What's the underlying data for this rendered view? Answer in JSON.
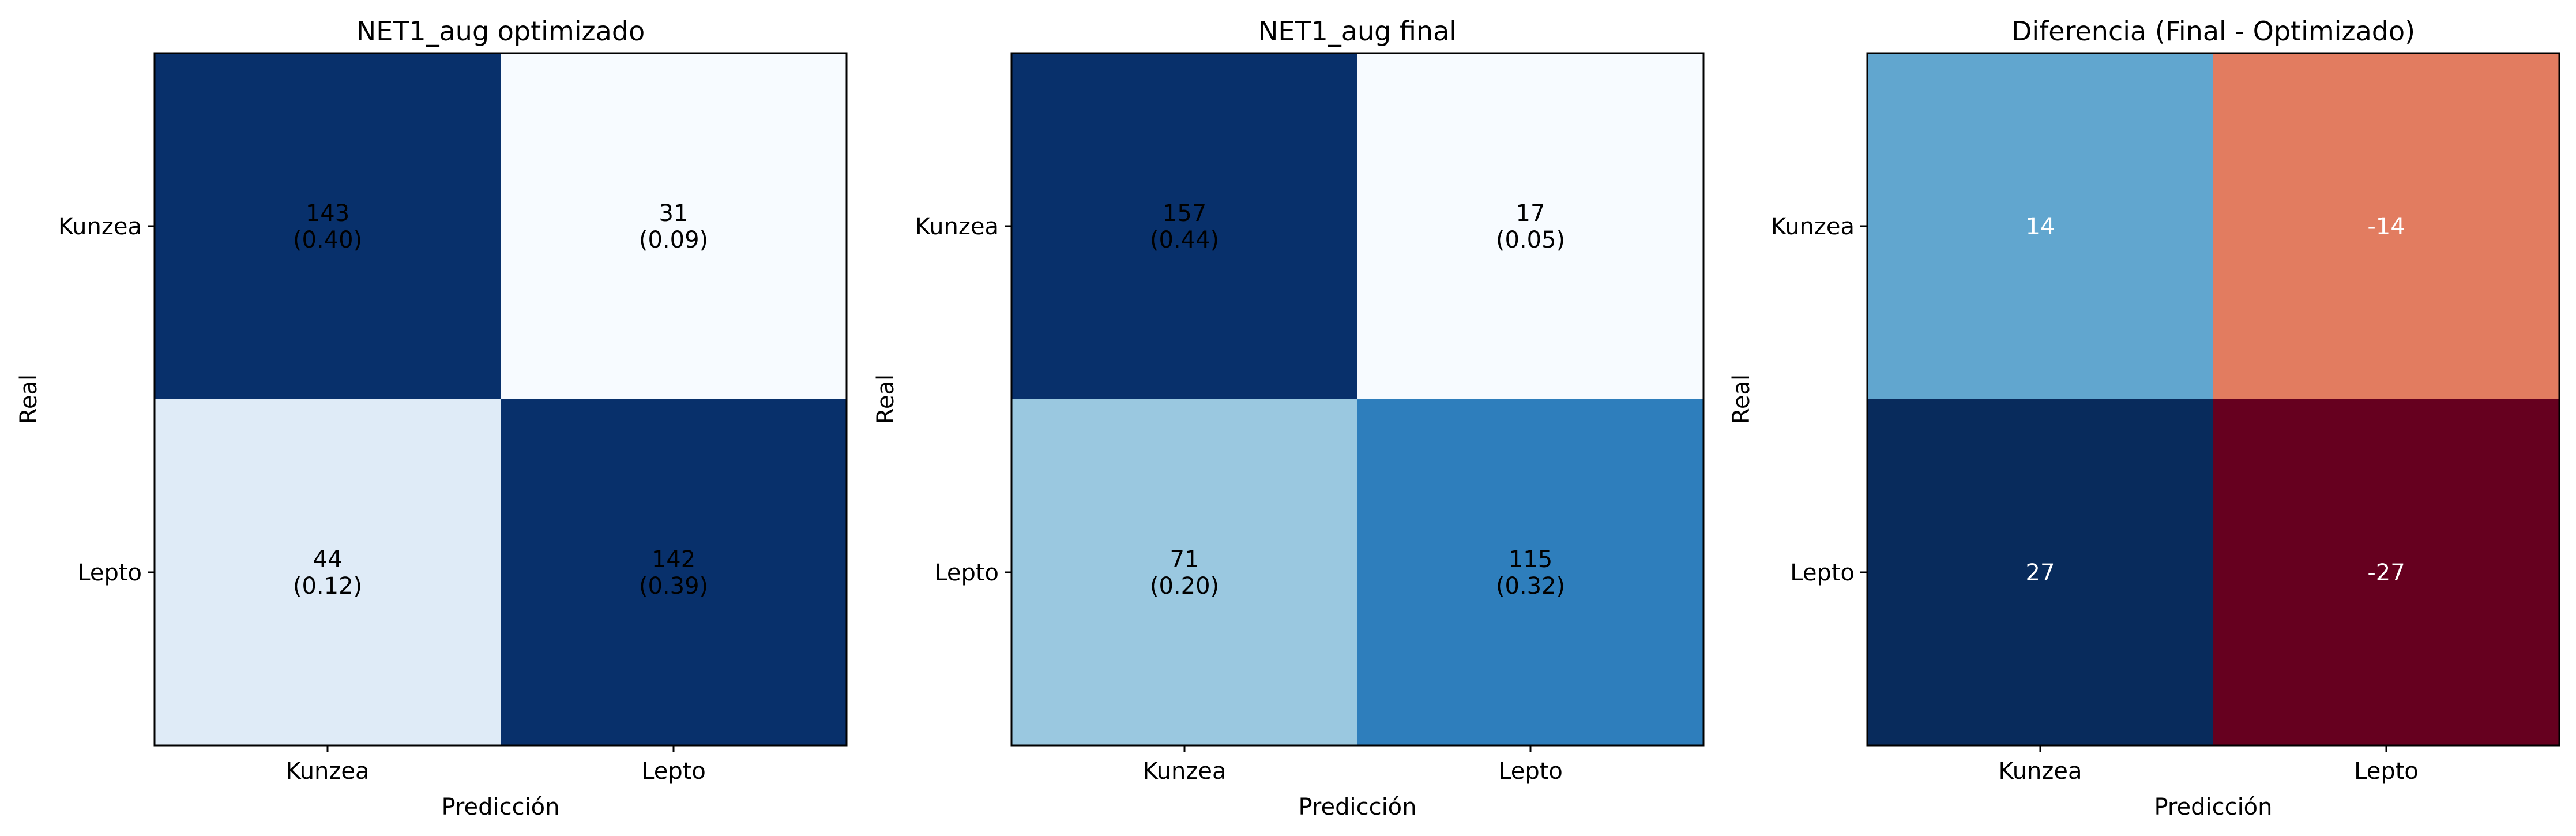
{
  "chart_data": [
    {
      "type": "heatmap",
      "title": "NET1_aug optimizado",
      "xlabel": "Predicción",
      "ylabel": "Real",
      "x_categories": [
        "Kunzea",
        "Lepto"
      ],
      "y_categories": [
        "Kunzea",
        "Lepto"
      ],
      "colormap": "Blues",
      "values": [
        [
          143,
          31
        ],
        [
          44,
          142
        ]
      ],
      "cell_labels": [
        [
          "143\n(0.40)",
          "31\n(0.09)"
        ],
        [
          "44\n(0.12)",
          "142\n(0.39)"
        ]
      ],
      "cell_colors": [
        [
          "#08306b",
          "#f7fbff"
        ],
        [
          "#dfebf7",
          "#08306b"
        ]
      ],
      "text_colors": [
        [
          "#000000",
          "#000000"
        ],
        [
          "#000000",
          "#000000"
        ]
      ]
    },
    {
      "type": "heatmap",
      "title": "NET1_aug final",
      "xlabel": "Predicción",
      "ylabel": "Real",
      "x_categories": [
        "Kunzea",
        "Lepto"
      ],
      "y_categories": [
        "Kunzea",
        "Lepto"
      ],
      "colormap": "Blues",
      "values": [
        [
          157,
          17
        ],
        [
          71,
          115
        ]
      ],
      "cell_labels": [
        [
          "157\n(0.44)",
          "17\n(0.05)"
        ],
        [
          "71\n(0.20)",
          "115\n(0.32)"
        ]
      ],
      "cell_colors": [
        [
          "#08306b",
          "#f7fbff"
        ],
        [
          "#9ac8e0",
          "#2e7ebc"
        ]
      ],
      "text_colors": [
        [
          "#000000",
          "#000000"
        ],
        [
          "#000000",
          "#000000"
        ]
      ]
    },
    {
      "type": "heatmap",
      "title": "Diferencia (Final - Optimizado)",
      "xlabel": "Predicción",
      "ylabel": "Real",
      "x_categories": [
        "Kunzea",
        "Lepto"
      ],
      "y_categories": [
        "Kunzea",
        "Lepto"
      ],
      "colormap": "RdBu",
      "values": [
        [
          14,
          -14
        ],
        [
          27,
          -27
        ]
      ],
      "cell_labels": [
        [
          "14",
          "-14"
        ],
        [
          "27",
          "-27"
        ]
      ],
      "cell_colors": [
        [
          "#61a6cf",
          "#e27c60"
        ],
        [
          "#082b5c",
          "#66001f"
        ]
      ],
      "text_colors": [
        [
          "#ffffff",
          "#ffffff"
        ],
        [
          "#ffffff",
          "#ffffff"
        ]
      ]
    }
  ]
}
